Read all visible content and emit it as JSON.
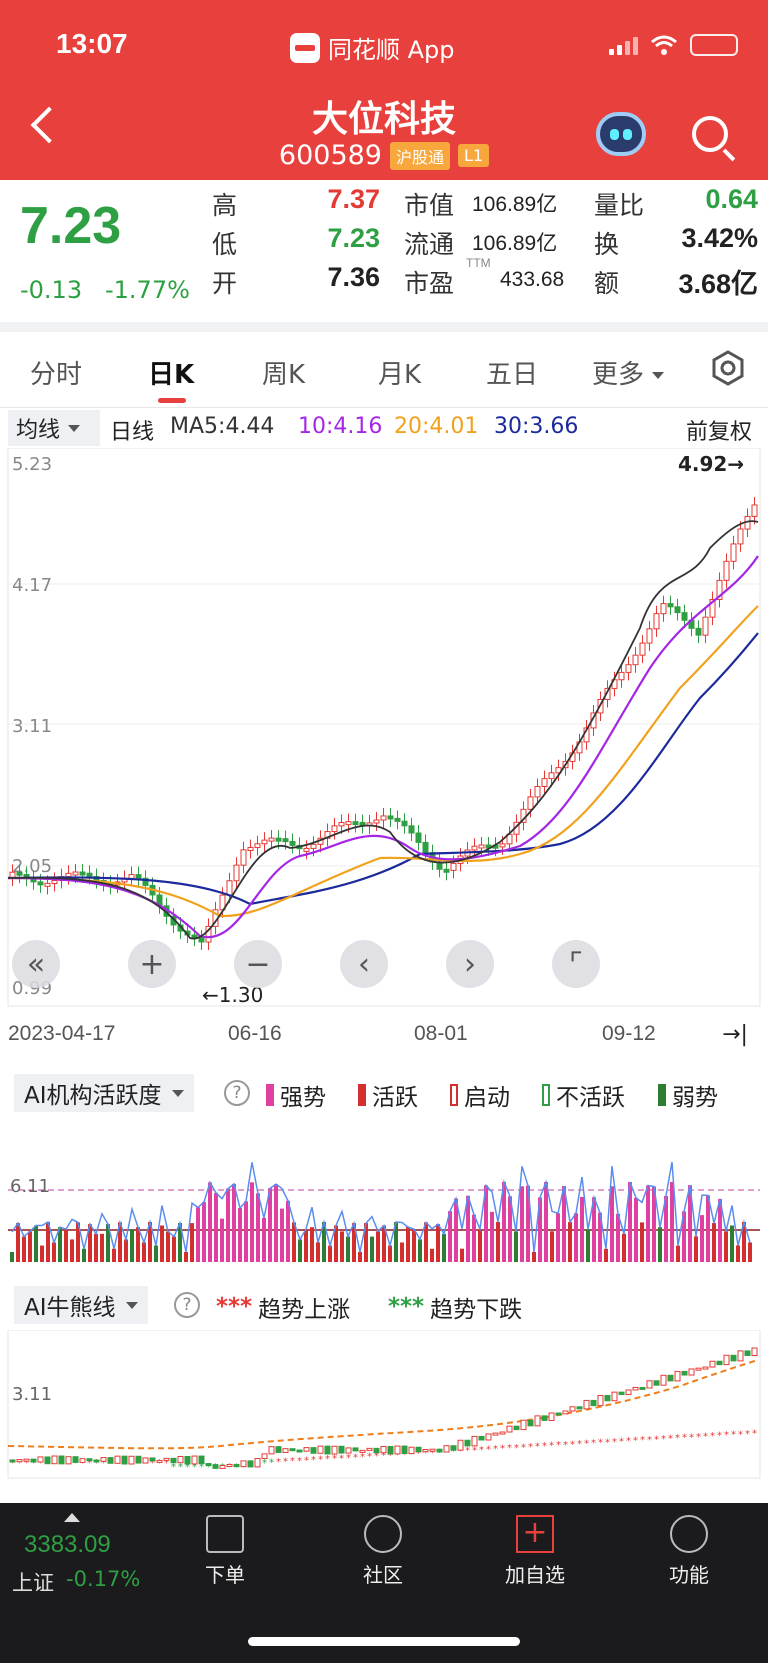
{
  "status": {
    "time": "13:07",
    "app_name": "同花顺 App"
  },
  "stock": {
    "name": "大位科技",
    "code": "600589",
    "tag_hgt": "沪股通",
    "tag_level": "L1"
  },
  "quote": {
    "price": "7.23",
    "change": "-0.13",
    "change_pct": "-1.77%",
    "labels": {
      "high": "高",
      "low": "低",
      "open": "开",
      "mkt_cap": "市值",
      "float": "流通",
      "pe": "市盈",
      "pe_sup": "TTM",
      "vol_ratio": "量比",
      "turnover": "换",
      "amount": "额"
    },
    "high": "7.37",
    "low": "7.23",
    "open": "7.36",
    "mkt_cap": "106.89亿",
    "float": "106.89亿",
    "pe": "433.68",
    "vol_ratio": "0.64",
    "turnover": "3.42%",
    "amount": "3.68亿"
  },
  "tabs": [
    "分时",
    "日K",
    "周K",
    "月K",
    "五日",
    "更多"
  ],
  "ma_row": {
    "button": "均线",
    "period": "日线",
    "ma5": "MA5:4.44",
    "ma10": "10:4.16",
    "ma20": "20:4.01",
    "ma30": "30:3.66",
    "adjust": "前复权"
  },
  "colors": {
    "up": "#e53935",
    "down": "#2ea043",
    "ma5": "#333333",
    "ma10": "#a626e6",
    "ma20": "#f0a21c",
    "ma30": "#1c2a9c",
    "accent": "#e8403d"
  },
  "kline": {
    "y_labels": [
      "5.23",
      "4.17",
      "3.11",
      "2.05",
      "0.99"
    ],
    "low_marker": "←1.30",
    "high_marker": "4.92→",
    "x_labels": [
      "2023-04-17",
      "06-16",
      "08-01",
      "09-12"
    ]
  },
  "ai_activity": {
    "title": "AI机构活跃度",
    "legend": [
      "强势",
      "活跃",
      "启动",
      "不活跃",
      "弱势"
    ],
    "level_label": "6.11"
  },
  "ai_bullbear": {
    "title": "AI牛熊线",
    "legend": [
      {
        "mark": "***",
        "label": "趋势上涨"
      },
      {
        "mark": "***",
        "label": "趋势下跌"
      }
    ],
    "level_label": "3.11"
  },
  "bottom": {
    "index_value": "3383.09",
    "index_name": "上证",
    "index_change": "-0.17%",
    "nav": [
      "下单",
      "社区",
      "加自选",
      "功能"
    ]
  }
}
